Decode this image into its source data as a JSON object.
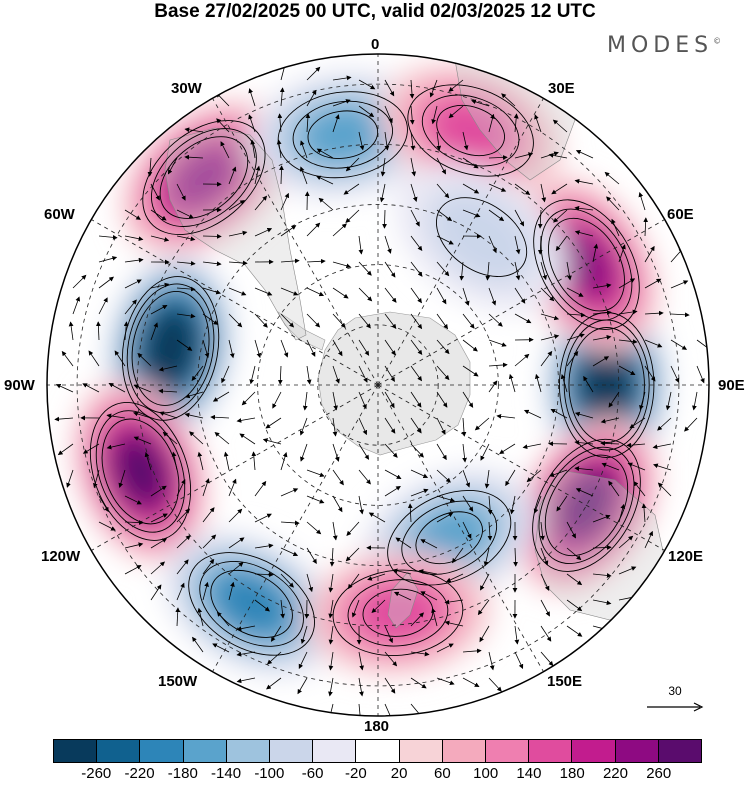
{
  "title": "Base 27/02/2025 00 UTC, valid 02/03/2025 12 UTC",
  "brand": "MODES",
  "brand_mark": "©",
  "longitude_labels": {
    "lon_0": "0",
    "lon_30e": "30E",
    "lon_60e": "60E",
    "lon_90e": "90E",
    "lon_120e": "120E",
    "lon_150e": "150E",
    "lon_180": "180",
    "lon_150w": "150W",
    "lon_120w": "120W",
    "lon_90w": "90W",
    "lon_60w": "60W",
    "lon_30w": "30W"
  },
  "vector_reference": "30",
  "colorbar": {
    "colors": [
      "#083a5c",
      "#10618f",
      "#2d85b8",
      "#5aa3cc",
      "#9ec3de",
      "#cbd6ea",
      "#e9e8f4",
      "#ffffff",
      "#f7d3d7",
      "#f4aabd",
      "#ef7fb0",
      "#e04c9e",
      "#c21c8e",
      "#8e0a82",
      "#5a0c6d"
    ],
    "tick_labels": [
      "-260",
      "-220",
      "-180",
      "-140",
      "-100",
      "-60",
      "-20",
      "20",
      "60",
      "100",
      "140",
      "180",
      "220",
      "260"
    ]
  },
  "anomaly_centers": [
    {
      "lon": -80,
      "lat": -55,
      "value": -280
    },
    {
      "lon": 90,
      "lat": -52,
      "value": -280
    },
    {
      "lon": -110,
      "lat": -48,
      "value": 240
    },
    {
      "lon": 120,
      "lat": -50,
      "value": 250
    },
    {
      "lon": -40,
      "lat": -45,
      "value": 200
    },
    {
      "lon": 60,
      "lat": -50,
      "value": 200
    },
    {
      "lon": -150,
      "lat": -48,
      "value": -180
    },
    {
      "lon": 155,
      "lat": -62,
      "value": -130
    },
    {
      "lon": -8,
      "lat": -48,
      "value": -150
    },
    {
      "lon": 20,
      "lat": -45,
      "value": 120
    },
    {
      "lon": 175,
      "lat": -52,
      "value": 120
    },
    {
      "lon": 35,
      "lat": -60,
      "value": -60
    }
  ]
}
